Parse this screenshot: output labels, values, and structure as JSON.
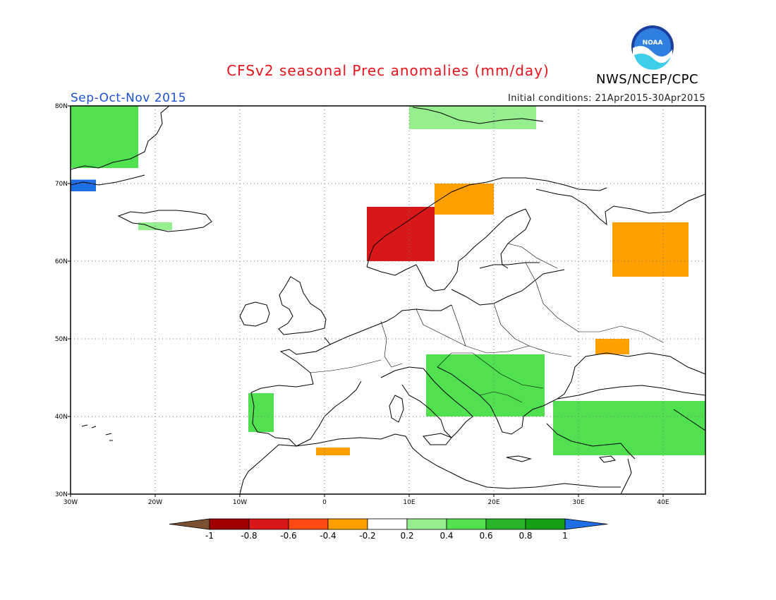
{
  "title": "CFSv2 seasonal Prec anomalies (mm/day)",
  "agency": "NWS/NCEP/CPC",
  "logo_text": "NOAA",
  "season": "Sep-Oct-Nov 2015",
  "initial_conditions": "Initial conditions: 21Apr2015-30Apr2015",
  "chart_data": {
    "type": "heatmap",
    "variable": "precipitation anomaly",
    "units": "mm/day",
    "lon_range": [
      -30,
      45
    ],
    "lat_range": [
      30,
      80
    ],
    "x_ticks": [
      "30W",
      "20W",
      "10W",
      "0",
      "10E",
      "20E",
      "30E",
      "40E"
    ],
    "y_ticks": [
      "30N",
      "40N",
      "50N",
      "60N",
      "70N",
      "80N"
    ],
    "grid": true,
    "colorbar": {
      "labels": [
        "-1",
        "-0.8",
        "-0.6",
        "-0.4",
        "-0.2",
        "0.2",
        "0.4",
        "0.6",
        "0.8",
        "1"
      ],
      "colors": [
        "#7a5030",
        "#a00000",
        "#d81818",
        "#ff4a14",
        "#ffa000",
        "#ffffff",
        "#96ef8e",
        "#50e050",
        "#28b428",
        "#14a014",
        "#1e6ee6"
      ]
    },
    "anomaly_regions": [
      {
        "name": "Greenland east",
        "lon": [
          -30,
          -22
        ],
        "lat": [
          72,
          80
        ],
        "value": 0.5
      },
      {
        "name": "Greenland southeast coast",
        "lon": [
          -30,
          -27
        ],
        "lat": [
          69,
          70.5
        ],
        "value": 1.1
      },
      {
        "name": "Iceland",
        "lon": [
          -22,
          -18
        ],
        "lat": [
          64,
          65
        ],
        "value": 0.3
      },
      {
        "name": "Svalbard",
        "lon": [
          10,
          25
        ],
        "lat": [
          77,
          80
        ],
        "value": 0.4
      },
      {
        "name": "Norway west coast",
        "lon": [
          5,
          13
        ],
        "lat": [
          60,
          67
        ],
        "value": -0.7
      },
      {
        "name": "Northern Norway",
        "lon": [
          13,
          20
        ],
        "lat": [
          66,
          70
        ],
        "value": -0.3
      },
      {
        "name": "Northwest Russia",
        "lon": [
          34,
          43
        ],
        "lat": [
          58,
          65
        ],
        "value": -0.3
      },
      {
        "name": "Ukraine",
        "lon": [
          32,
          36
        ],
        "lat": [
          48,
          50
        ],
        "value": -0.3
      },
      {
        "name": "Balkans",
        "lon": [
          12,
          26
        ],
        "lat": [
          40,
          48
        ],
        "value": 0.5
      },
      {
        "name": "Turkey",
        "lon": [
          27,
          45
        ],
        "lat": [
          35,
          42
        ],
        "value": 0.6
      },
      {
        "name": "Iberia west",
        "lon": [
          -9,
          -6
        ],
        "lat": [
          38,
          43
        ],
        "value": 0.5
      },
      {
        "name": "Morocco coast",
        "lon": [
          -1,
          3
        ],
        "lat": [
          35,
          36
        ],
        "value": -0.3
      }
    ]
  }
}
